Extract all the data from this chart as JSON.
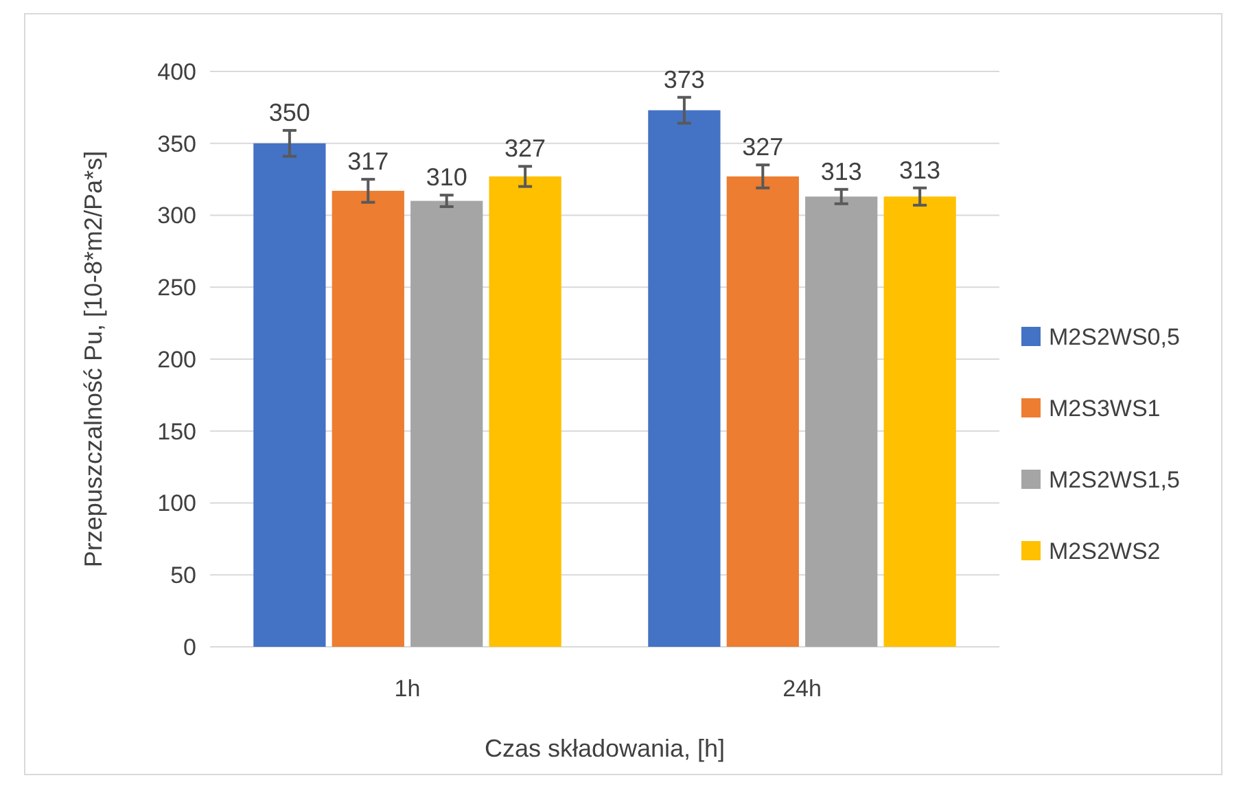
{
  "chart_data": {
    "type": "bar",
    "xlabel": "Czas składowania, [h]",
    "ylabel": "Przepuszczalność Pu, [10-8*m2/Pa*s]",
    "categories": [
      "1h",
      "24h"
    ],
    "series": [
      {
        "name": "M2S2WS0,5",
        "color": "#4472c4",
        "values": [
          350,
          373
        ],
        "errors": [
          9,
          9
        ]
      },
      {
        "name": "M2S3WS1",
        "color": "#ed7d31",
        "values": [
          317,
          327
        ],
        "errors": [
          8,
          8
        ]
      },
      {
        "name": "M2S2WS1,5",
        "color": "#a5a5a5",
        "values": [
          310,
          313
        ],
        "errors": [
          4,
          5
        ]
      },
      {
        "name": "M2S2WS2",
        "color": "#ffc000",
        "values": [
          327,
          313
        ],
        "errors": [
          7,
          6
        ]
      }
    ],
    "ylim": [
      0,
      400
    ],
    "yticks": [
      0,
      50,
      100,
      150,
      200,
      250,
      300,
      350,
      400
    ],
    "grid": "y",
    "legend": "right",
    "data_labels": true
  }
}
